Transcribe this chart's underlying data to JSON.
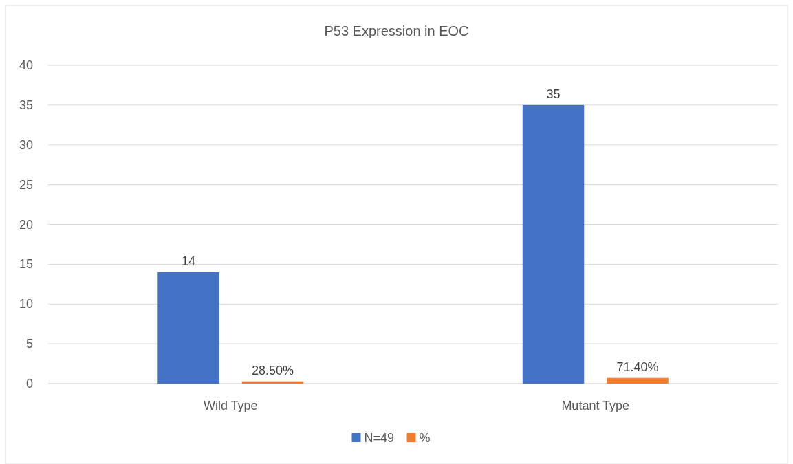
{
  "chart_data": {
    "type": "bar",
    "title": "P53 Expression in EOC",
    "categories": [
      "Wild Type",
      "Mutant Type"
    ],
    "series": [
      {
        "name": "N=49",
        "color": "#4472c4",
        "values": [
          14,
          35
        ],
        "value_labels": [
          "14",
          "35"
        ]
      },
      {
        "name": "%",
        "color": "#ed7d31",
        "values": [
          0.285,
          0.714
        ],
        "value_labels": [
          "28.50%",
          "71.40%"
        ]
      }
    ],
    "ylim": [
      0,
      40
    ],
    "yticks": [
      0,
      5,
      10,
      15,
      20,
      25,
      30,
      35,
      40
    ],
    "grid": "y",
    "legend": "bottom"
  }
}
